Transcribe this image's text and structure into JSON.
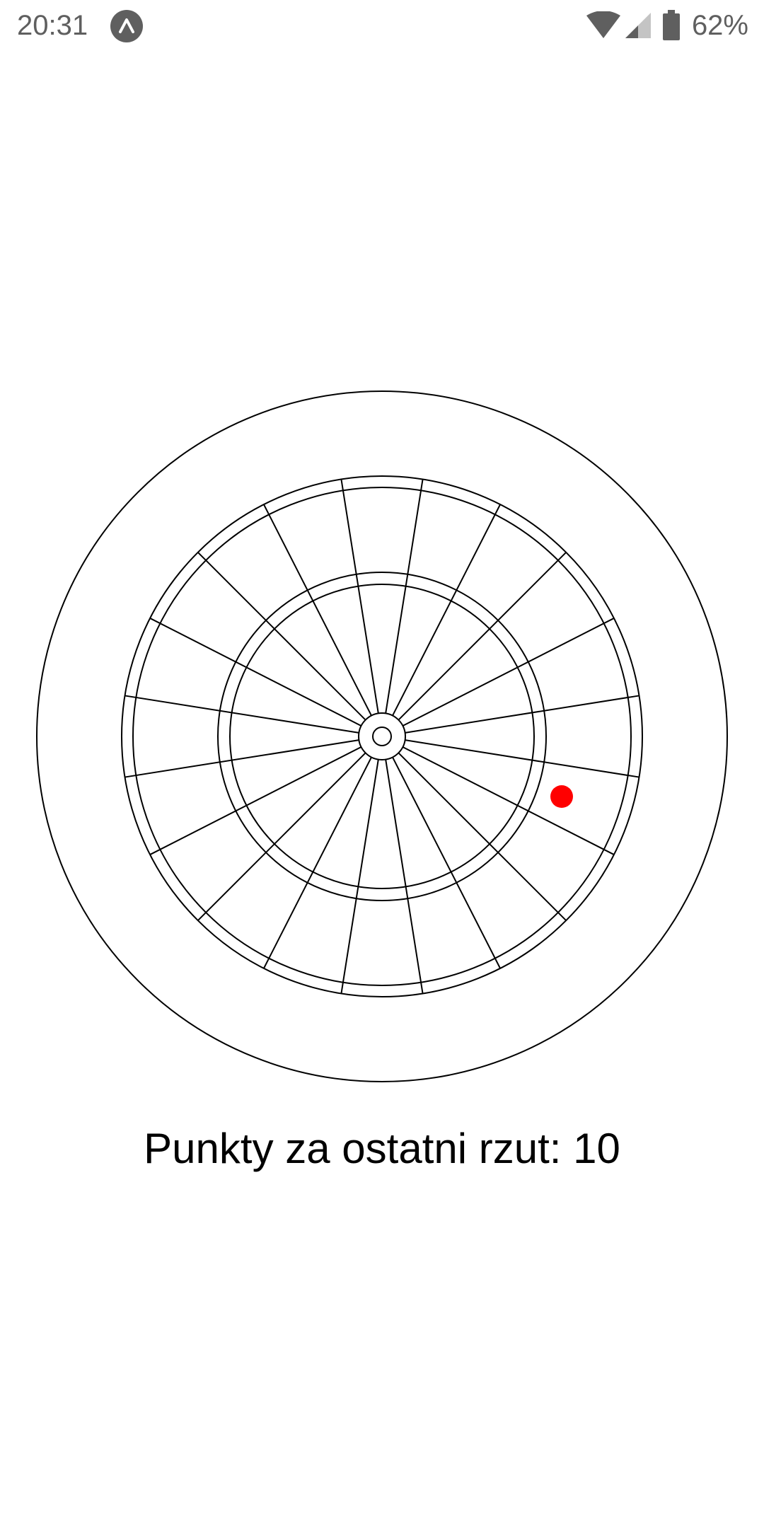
{
  "status_bar": {
    "time": "20:31",
    "app_icon": "expo-icon",
    "wifi_icon": "wifi-icon",
    "signal_icon": "cell-signal-icon",
    "battery_icon": "battery-icon",
    "battery_percent": "62%"
  },
  "dartboard": {
    "segments": 20,
    "line_color": "#000000",
    "background": "#ffffff",
    "dart_color": "#ff0000"
  },
  "score": {
    "text": "Punkty za ostatni rzut: 10"
  }
}
